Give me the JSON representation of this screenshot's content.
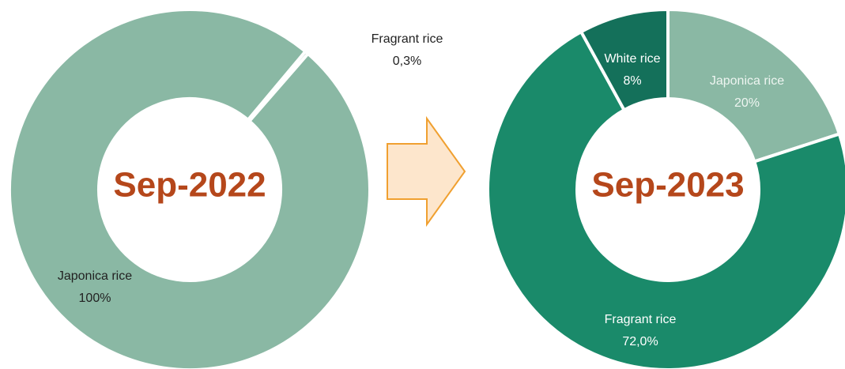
{
  "chart_data": [
    {
      "type": "donut",
      "center_label": "Sep-2022",
      "categories": [
        "Japonica rice",
        "Fragrant rice"
      ],
      "values": [
        100,
        0.3
      ],
      "value_labels": [
        "100%",
        "0,3%"
      ],
      "colors": [
        "#8ab8a4",
        "#8ab8a4"
      ]
    },
    {
      "type": "donut",
      "center_label": "Sep-2023",
      "categories": [
        "Japonica rice",
        "Fragrant rice",
        "White rice"
      ],
      "values": [
        20,
        72,
        8
      ],
      "value_labels": [
        "20%",
        "72,0%",
        "8%"
      ],
      "colors": [
        "#8ab8a4",
        "#1a8a6a",
        "#14705a"
      ]
    }
  ]
}
